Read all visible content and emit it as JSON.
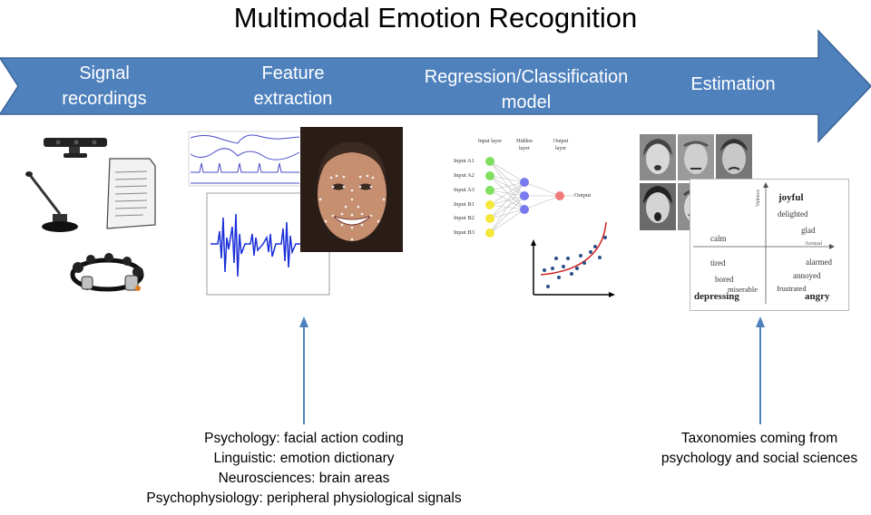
{
  "title": "Multimodal Emotion Recognition",
  "stages": [
    {
      "line1": "Signal",
      "line2": "recordings"
    },
    {
      "line1": "Feature",
      "line2": "extraction"
    },
    {
      "line1": "Regression/Classification",
      "line2": "model"
    },
    {
      "line1": "Estimation",
      "line2": ""
    }
  ],
  "nn": {
    "input_layer": "Input layer",
    "hidden_layer": "Hidden layer",
    "output_layer": "Output layer",
    "inputs": [
      "Input A1",
      "Input A2",
      "Input A3",
      "Input B1",
      "Input B2",
      "Input B3"
    ],
    "output": "Output"
  },
  "circumplex": {
    "joyful": "joyful",
    "delighted": "delighted",
    "glad": "glad",
    "calm": "calm",
    "tired": "tired",
    "bored": "bored",
    "miserable": "miserable",
    "depressing": "depressing",
    "alarmed": "alarmed",
    "annoyed": "annoyed",
    "frustrated": "frustrated",
    "angry": "angry",
    "valence": "Valence",
    "arousal": "Arousal"
  },
  "feature_notes": [
    "Psychology: facial action coding",
    "Linguistic: emotion dictionary",
    "Neurosciences: brain areas",
    "Psychophysiology: peripheral physiological signals"
  ],
  "estimation_notes": [
    "Taxonomies coming from",
    "psychology and social sciences"
  ],
  "colors": {
    "arrow_fill": "#4f81bd",
    "arrow_stroke": "#3a6496",
    "pointer": "#4f81bd",
    "node_green": "#7fe060",
    "node_yellow": "#f5e63a",
    "node_hidden": "#7a7af0",
    "node_output": "#f07a7a"
  }
}
